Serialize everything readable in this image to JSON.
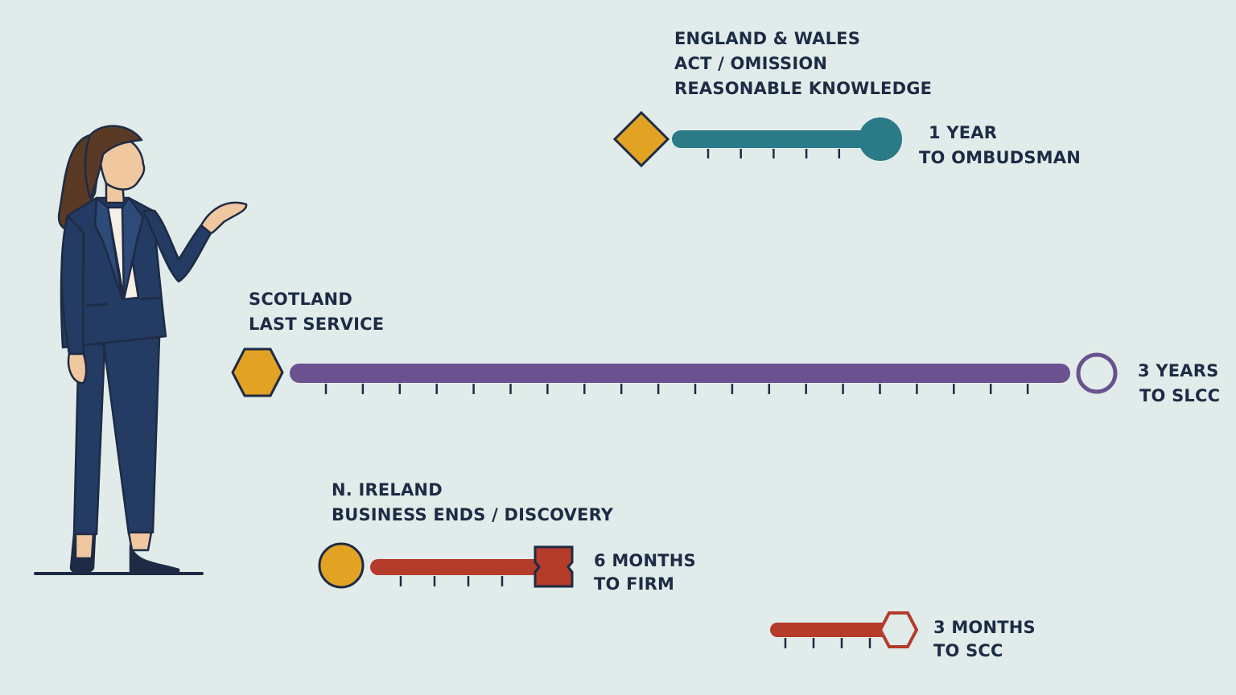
{
  "colors": {
    "background": "#e1ecea",
    "text": "#1d2b45",
    "gold": "#e2a223",
    "teal": "#2a7a88",
    "purple": "#6a5290",
    "red": "#b53b2b",
    "suit": "#243b63",
    "outline": "#1d2b45"
  },
  "timelines": [
    {
      "id": "england-wales",
      "lines": [
        "ENGLAND & WALES",
        "ACT / OMISSION",
        "REASONABLE KNOWLEDGE"
      ],
      "result": [
        "1 YEAR",
        "TO OMBUDSMAN"
      ],
      "start_marker": "diamond",
      "end_marker": "filled-circle",
      "color": "teal",
      "ticks": 5
    },
    {
      "id": "scotland",
      "lines": [
        "SCOTLAND",
        "LAST SERVICE"
      ],
      "result": [
        "3 YEARS",
        "TO SLCC"
      ],
      "start_marker": "hexagon",
      "end_marker": "open-circle",
      "color": "purple",
      "ticks": 20
    },
    {
      "id": "n-ireland",
      "lines": [
        "N. IRELAND",
        "BUSINESS ENDS / DISCOVERY"
      ],
      "result": [
        "6 MONTHS",
        "TO FIRM"
      ],
      "start_marker": "circle",
      "end_marker": "notched-square",
      "color": "red",
      "ticks": 4
    },
    {
      "id": "n-ireland-scc",
      "lines": [],
      "result": [
        "3 MONTHS",
        "TO SCC"
      ],
      "start_marker": "none",
      "end_marker": "open-hexagon",
      "color": "red",
      "ticks": 4
    }
  ]
}
